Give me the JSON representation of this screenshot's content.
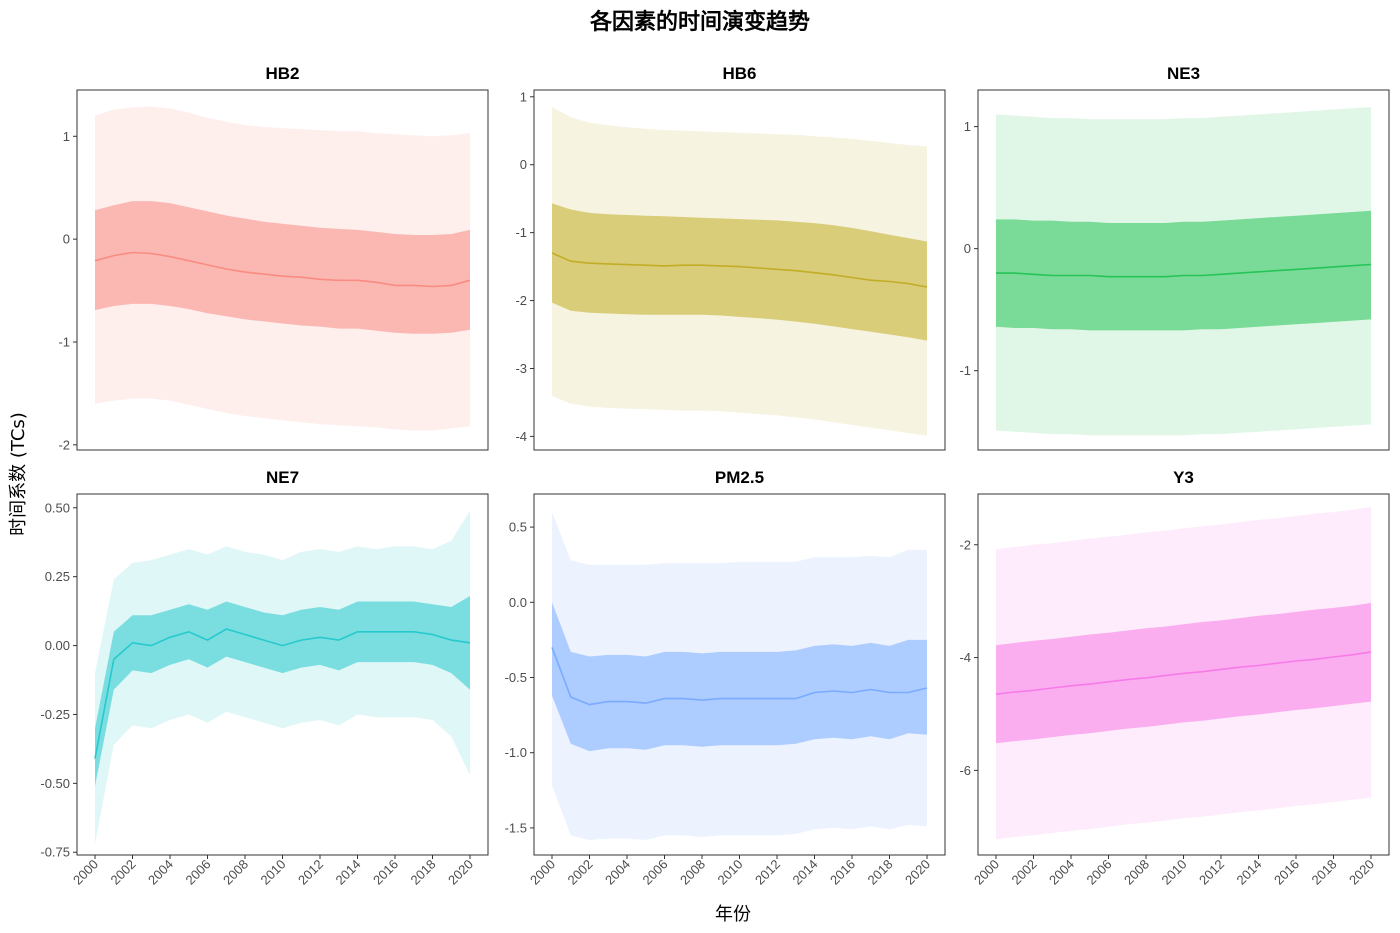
{
  "title": "各因素的时间演变趋势",
  "ylabel": "时间系数 (TCs)",
  "xlabel": "年份",
  "chart_data": [
    {
      "type": "area",
      "title": "HB2",
      "color": "#F8766D",
      "x": [
        2000,
        2001,
        2002,
        2003,
        2004,
        2005,
        2006,
        2007,
        2008,
        2009,
        2010,
        2011,
        2012,
        2013,
        2014,
        2015,
        2016,
        2017,
        2018,
        2019,
        2020
      ],
      "x_ticks": [
        2000,
        2002,
        2004,
        2006,
        2008,
        2010,
        2012,
        2014,
        2016,
        2018,
        2020
      ],
      "ylim": [
        -2.05,
        1.45
      ],
      "yticks": [
        -2,
        -1,
        0,
        1
      ],
      "ytick_labels": [
        "-2",
        "-1",
        "0",
        "1"
      ],
      "mean": [
        -0.21,
        -0.16,
        -0.13,
        -0.14,
        -0.17,
        -0.21,
        -0.25,
        -0.29,
        -0.32,
        -0.34,
        -0.36,
        -0.37,
        -0.39,
        -0.4,
        -0.4,
        -0.42,
        -0.45,
        -0.45,
        -0.46,
        -0.45,
        -0.4
      ],
      "inner_upper": [
        0.28,
        0.33,
        0.37,
        0.37,
        0.35,
        0.31,
        0.27,
        0.23,
        0.2,
        0.17,
        0.15,
        0.13,
        0.11,
        0.1,
        0.09,
        0.07,
        0.05,
        0.04,
        0.04,
        0.05,
        0.09
      ],
      "inner_lower": [
        -0.69,
        -0.65,
        -0.63,
        -0.63,
        -0.65,
        -0.68,
        -0.72,
        -0.75,
        -0.78,
        -0.8,
        -0.82,
        -0.84,
        -0.85,
        -0.87,
        -0.87,
        -0.89,
        -0.91,
        -0.92,
        -0.92,
        -0.91,
        -0.88
      ],
      "outer_upper": [
        1.2,
        1.26,
        1.28,
        1.29,
        1.27,
        1.23,
        1.18,
        1.14,
        1.11,
        1.09,
        1.08,
        1.07,
        1.06,
        1.05,
        1.05,
        1.03,
        1.02,
        1.01,
        1.0,
        1.01,
        1.03
      ],
      "outer_lower": [
        -1.6,
        -1.57,
        -1.55,
        -1.55,
        -1.57,
        -1.61,
        -1.65,
        -1.69,
        -1.72,
        -1.74,
        -1.76,
        -1.78,
        -1.8,
        -1.81,
        -1.82,
        -1.83,
        -1.85,
        -1.86,
        -1.86,
        -1.84,
        -1.82
      ]
    },
    {
      "type": "area",
      "title": "HB6",
      "color": "#B79F00",
      "x": [
        2000,
        2001,
        2002,
        2003,
        2004,
        2005,
        2006,
        2007,
        2008,
        2009,
        2010,
        2011,
        2012,
        2013,
        2014,
        2015,
        2016,
        2017,
        2018,
        2019,
        2020
      ],
      "x_ticks": [
        2000,
        2002,
        2004,
        2006,
        2008,
        2010,
        2012,
        2014,
        2016,
        2018,
        2020
      ],
      "ylim": [
        -4.2,
        1.1
      ],
      "yticks": [
        -4,
        -3,
        -2,
        -1,
        0,
        1
      ],
      "ytick_labels": [
        "-4",
        "-3",
        "-2",
        "-1",
        "0",
        "1"
      ],
      "mean": [
        -1.3,
        -1.42,
        -1.45,
        -1.46,
        -1.47,
        -1.48,
        -1.49,
        -1.48,
        -1.48,
        -1.49,
        -1.5,
        -1.52,
        -1.54,
        -1.56,
        -1.59,
        -1.62,
        -1.66,
        -1.7,
        -1.72,
        -1.75,
        -1.8
      ],
      "inner_upper": [
        -0.57,
        -0.66,
        -0.71,
        -0.73,
        -0.74,
        -0.75,
        -0.76,
        -0.77,
        -0.78,
        -0.79,
        -0.8,
        -0.81,
        -0.82,
        -0.84,
        -0.86,
        -0.89,
        -0.93,
        -0.98,
        -1.03,
        -1.08,
        -1.13
      ],
      "inner_lower": [
        -2.03,
        -2.15,
        -2.18,
        -2.19,
        -2.2,
        -2.21,
        -2.21,
        -2.21,
        -2.21,
        -2.22,
        -2.24,
        -2.26,
        -2.28,
        -2.31,
        -2.34,
        -2.38,
        -2.42,
        -2.46,
        -2.5,
        -2.54,
        -2.59
      ],
      "outer_upper": [
        0.85,
        0.7,
        0.62,
        0.58,
        0.55,
        0.53,
        0.51,
        0.5,
        0.49,
        0.48,
        0.47,
        0.46,
        0.45,
        0.44,
        0.42,
        0.4,
        0.38,
        0.35,
        0.32,
        0.29,
        0.27
      ],
      "outer_lower": [
        -3.4,
        -3.52,
        -3.56,
        -3.58,
        -3.59,
        -3.6,
        -3.61,
        -3.62,
        -3.62,
        -3.63,
        -3.65,
        -3.67,
        -3.69,
        -3.72,
        -3.75,
        -3.79,
        -3.83,
        -3.87,
        -3.91,
        -3.95,
        -3.99
      ]
    },
    {
      "type": "area",
      "title": "NE3",
      "color": "#00BA38",
      "x": [
        2000,
        2001,
        2002,
        2003,
        2004,
        2005,
        2006,
        2007,
        2008,
        2009,
        2010,
        2011,
        2012,
        2013,
        2014,
        2015,
        2016,
        2017,
        2018,
        2019,
        2020
      ],
      "x_ticks": [
        2000,
        2002,
        2004,
        2006,
        2008,
        2010,
        2012,
        2014,
        2016,
        2018,
        2020
      ],
      "ylim": [
        -1.65,
        1.3
      ],
      "yticks": [
        -1,
        0,
        1
      ],
      "ytick_labels": [
        "-1",
        "0",
        "1"
      ],
      "mean": [
        -0.2,
        -0.2,
        -0.21,
        -0.22,
        -0.22,
        -0.22,
        -0.23,
        -0.23,
        -0.23,
        -0.23,
        -0.22,
        -0.22,
        -0.21,
        -0.2,
        -0.19,
        -0.18,
        -0.17,
        -0.16,
        -0.15,
        -0.14,
        -0.13
      ],
      "inner_upper": [
        0.24,
        0.24,
        0.23,
        0.23,
        0.22,
        0.22,
        0.21,
        0.21,
        0.21,
        0.21,
        0.22,
        0.22,
        0.23,
        0.24,
        0.25,
        0.26,
        0.27,
        0.28,
        0.29,
        0.3,
        0.31
      ],
      "inner_lower": [
        -0.64,
        -0.65,
        -0.65,
        -0.66,
        -0.66,
        -0.67,
        -0.67,
        -0.67,
        -0.67,
        -0.67,
        -0.67,
        -0.66,
        -0.66,
        -0.65,
        -0.64,
        -0.63,
        -0.62,
        -0.61,
        -0.6,
        -0.59,
        -0.58
      ],
      "outer_upper": [
        1.1,
        1.09,
        1.08,
        1.07,
        1.07,
        1.06,
        1.06,
        1.06,
        1.06,
        1.06,
        1.07,
        1.07,
        1.08,
        1.09,
        1.1,
        1.11,
        1.12,
        1.13,
        1.14,
        1.15,
        1.16
      ],
      "outer_lower": [
        -1.49,
        -1.5,
        -1.51,
        -1.52,
        -1.52,
        -1.53,
        -1.53,
        -1.53,
        -1.53,
        -1.53,
        -1.53,
        -1.52,
        -1.52,
        -1.51,
        -1.5,
        -1.49,
        -1.48,
        -1.47,
        -1.46,
        -1.45,
        -1.44
      ]
    },
    {
      "type": "area",
      "title": "NE7",
      "color": "#00BFC4",
      "x": [
        2000,
        2001,
        2002,
        2003,
        2004,
        2005,
        2006,
        2007,
        2008,
        2009,
        2010,
        2011,
        2012,
        2013,
        2014,
        2015,
        2016,
        2017,
        2018,
        2019,
        2020
      ],
      "x_ticks": [
        2000,
        2002,
        2004,
        2006,
        2008,
        2010,
        2012,
        2014,
        2016,
        2018,
        2020
      ],
      "ylim": [
        -0.76,
        0.55
      ],
      "yticks": [
        -0.75,
        -0.5,
        -0.25,
        0,
        0.25,
        0.5
      ],
      "ytick_labels": [
        "-0.75",
        "-0.50",
        "-0.25",
        "0.00",
        "0.25",
        "0.50"
      ],
      "mean": [
        -0.41,
        -0.05,
        0.01,
        0.0,
        0.03,
        0.05,
        0.02,
        0.06,
        0.04,
        0.02,
        0.0,
        0.02,
        0.03,
        0.02,
        0.05,
        0.05,
        0.05,
        0.05,
        0.04,
        0.02,
        0.01
      ],
      "inner_upper": [
        -0.3,
        0.05,
        0.11,
        0.11,
        0.13,
        0.15,
        0.13,
        0.16,
        0.14,
        0.12,
        0.11,
        0.13,
        0.14,
        0.13,
        0.16,
        0.16,
        0.16,
        0.16,
        0.15,
        0.14,
        0.18
      ],
      "inner_lower": [
        -0.51,
        -0.16,
        -0.09,
        -0.1,
        -0.07,
        -0.05,
        -0.08,
        -0.04,
        -0.06,
        -0.08,
        -0.1,
        -0.08,
        -0.07,
        -0.09,
        -0.06,
        -0.06,
        -0.06,
        -0.06,
        -0.07,
        -0.1,
        -0.16
      ],
      "outer_upper": [
        -0.1,
        0.24,
        0.3,
        0.31,
        0.33,
        0.35,
        0.33,
        0.36,
        0.34,
        0.33,
        0.31,
        0.34,
        0.35,
        0.34,
        0.36,
        0.35,
        0.36,
        0.36,
        0.35,
        0.38,
        0.49
      ],
      "outer_lower": [
        -0.72,
        -0.36,
        -0.29,
        -0.3,
        -0.27,
        -0.25,
        -0.28,
        -0.24,
        -0.26,
        -0.28,
        -0.3,
        -0.28,
        -0.27,
        -0.29,
        -0.25,
        -0.26,
        -0.26,
        -0.26,
        -0.27,
        -0.33,
        -0.47
      ]
    },
    {
      "type": "area",
      "title": "PM2.5",
      "color": "#619CFF",
      "x": [
        2000,
        2001,
        2002,
        2003,
        2004,
        2005,
        2006,
        2007,
        2008,
        2009,
        2010,
        2011,
        2012,
        2013,
        2014,
        2015,
        2016,
        2017,
        2018,
        2019,
        2020
      ],
      "x_ticks": [
        2000,
        2002,
        2004,
        2006,
        2008,
        2010,
        2012,
        2014,
        2016,
        2018,
        2020
      ],
      "ylim": [
        -1.68,
        0.72
      ],
      "yticks": [
        -1.5,
        -1.0,
        -0.5,
        0.0,
        0.5
      ],
      "ytick_labels": [
        "-1.5",
        "-1.0",
        "-0.5",
        "0.0",
        "0.5"
      ],
      "mean": [
        -0.3,
        -0.63,
        -0.68,
        -0.66,
        -0.66,
        -0.67,
        -0.64,
        -0.64,
        -0.65,
        -0.64,
        -0.64,
        -0.64,
        -0.64,
        -0.64,
        -0.6,
        -0.59,
        -0.6,
        -0.58,
        -0.6,
        -0.6,
        -0.57
      ],
      "inner_upper": [
        0.0,
        -0.33,
        -0.36,
        -0.35,
        -0.35,
        -0.36,
        -0.33,
        -0.33,
        -0.34,
        -0.33,
        -0.33,
        -0.33,
        -0.33,
        -0.32,
        -0.29,
        -0.28,
        -0.29,
        -0.27,
        -0.29,
        -0.25,
        -0.25
      ],
      "inner_lower": [
        -0.62,
        -0.94,
        -0.99,
        -0.97,
        -0.97,
        -0.98,
        -0.95,
        -0.95,
        -0.96,
        -0.95,
        -0.95,
        -0.95,
        -0.95,
        -0.94,
        -0.91,
        -0.9,
        -0.91,
        -0.89,
        -0.91,
        -0.87,
        -0.88
      ],
      "outer_upper": [
        0.6,
        0.28,
        0.25,
        0.25,
        0.25,
        0.25,
        0.26,
        0.26,
        0.26,
        0.26,
        0.27,
        0.27,
        0.27,
        0.27,
        0.3,
        0.3,
        0.3,
        0.31,
        0.3,
        0.35,
        0.35
      ],
      "outer_lower": [
        -1.22,
        -1.55,
        -1.58,
        -1.57,
        -1.57,
        -1.58,
        -1.55,
        -1.55,
        -1.56,
        -1.55,
        -1.55,
        -1.55,
        -1.55,
        -1.54,
        -1.51,
        -1.5,
        -1.51,
        -1.49,
        -1.51,
        -1.48,
        -1.49
      ]
    },
    {
      "type": "area",
      "title": "Y3",
      "color": "#F564E3",
      "x": [
        2000,
        2001,
        2002,
        2003,
        2004,
        2005,
        2006,
        2007,
        2008,
        2009,
        2010,
        2011,
        2012,
        2013,
        2014,
        2015,
        2016,
        2017,
        2018,
        2019,
        2020
      ],
      "x_ticks": [
        2000,
        2002,
        2004,
        2006,
        2008,
        2010,
        2012,
        2014,
        2016,
        2018,
        2020
      ],
      "ylim": [
        -7.5,
        -1.1
      ],
      "yticks": [
        -6,
        -4,
        -2
      ],
      "ytick_labels": [
        "-6",
        "-4",
        "-2"
      ],
      "mean": [
        -4.65,
        -4.61,
        -4.58,
        -4.54,
        -4.5,
        -4.47,
        -4.43,
        -4.39,
        -4.36,
        -4.32,
        -4.28,
        -4.25,
        -4.21,
        -4.17,
        -4.14,
        -4.1,
        -4.06,
        -4.03,
        -3.99,
        -3.95,
        -3.9
      ],
      "inner_upper": [
        -3.78,
        -3.74,
        -3.7,
        -3.67,
        -3.63,
        -3.59,
        -3.56,
        -3.52,
        -3.48,
        -3.45,
        -3.41,
        -3.37,
        -3.34,
        -3.3,
        -3.26,
        -3.23,
        -3.19,
        -3.15,
        -3.12,
        -3.08,
        -3.03
      ],
      "inner_lower": [
        -5.52,
        -5.48,
        -5.45,
        -5.41,
        -5.37,
        -5.34,
        -5.3,
        -5.26,
        -5.23,
        -5.19,
        -5.15,
        -5.12,
        -5.08,
        -5.04,
        -5.01,
        -4.97,
        -4.93,
        -4.9,
        -4.86,
        -4.82,
        -4.78
      ],
      "outer_upper": [
        -2.08,
        -2.04,
        -2.0,
        -1.97,
        -1.93,
        -1.89,
        -1.86,
        -1.82,
        -1.78,
        -1.75,
        -1.71,
        -1.67,
        -1.64,
        -1.6,
        -1.56,
        -1.53,
        -1.49,
        -1.45,
        -1.42,
        -1.38,
        -1.33
      ],
      "outer_lower": [
        -7.22,
        -7.18,
        -7.15,
        -7.11,
        -7.07,
        -7.04,
        -7.0,
        -6.96,
        -6.93,
        -6.89,
        -6.85,
        -6.82,
        -6.78,
        -6.74,
        -6.71,
        -6.67,
        -6.63,
        -6.6,
        -6.56,
        -6.52,
        -6.48
      ]
    }
  ]
}
